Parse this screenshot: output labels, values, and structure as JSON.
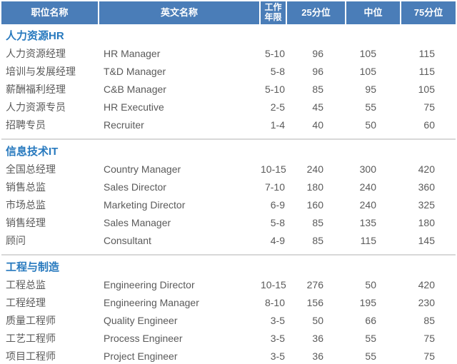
{
  "header": {
    "col_position": "职位名称",
    "col_english": "英文名称",
    "col_years_line1": "工作",
    "col_years_line2": "年限",
    "col_p25": "25分位",
    "col_median": "中位",
    "col_p75": "75分位"
  },
  "sections": [
    {
      "title": "人力资源HR",
      "rows": [
        {
          "cn": "人力资源经理",
          "en": "HR Manager",
          "years": "5-10",
          "p25": "96",
          "median": "105",
          "p75": "115"
        },
        {
          "cn": "培训与发展经理",
          "en": "T&D Manager",
          "years": "5-8",
          "p25": "96",
          "median": "105",
          "p75": "115"
        },
        {
          "cn": "薪酬福利经理",
          "en": "C&B Manager",
          "years": "5-10",
          "p25": "85",
          "median": "95",
          "p75": "105"
        },
        {
          "cn": "人力资源专员",
          "en": "HR Executive",
          "years": "2-5",
          "p25": "45",
          "median": "55",
          "p75": "75"
        },
        {
          "cn": "招聘专员",
          "en": "Recruiter",
          "years": "1-4",
          "p25": "40",
          "median": "50",
          "p75": "60"
        }
      ]
    },
    {
      "title": "信息技术IT",
      "rows": [
        {
          "cn": "全国总经理",
          "en": "Country Manager",
          "years": "10-15",
          "p25": "240",
          "median": "300",
          "p75": "420"
        },
        {
          "cn": "销售总监",
          "en": "Sales Director",
          "years": "7-10",
          "p25": "180",
          "median": "240",
          "p75": "360"
        },
        {
          "cn": "市场总监",
          "en": "Marketing Director",
          "years": "6-9",
          "p25": "160",
          "median": "240",
          "p75": "325"
        },
        {
          "cn": "销售经理",
          "en": "Sales Manager",
          "years": "5-8",
          "p25": "85",
          "median": "135",
          "p75": "180"
        },
        {
          "cn": "顾问",
          "en": "Consultant",
          "years": "4-9",
          "p25": "85",
          "median": "115",
          "p75": "145"
        }
      ]
    },
    {
      "title": "工程与制造",
      "rows": [
        {
          "cn": "工程总监",
          "en": "Engineering Director",
          "years": "10-15",
          "p25": "276",
          "median": "50",
          "p75": "420"
        },
        {
          "cn": "工程经理",
          "en": "Engineering Manager",
          "years": "8-10",
          "p25": "156",
          "median": "195",
          "p75": "230"
        },
        {
          "cn": "质量工程师",
          "en": "Quality Engineer",
          "years": "3-5",
          "p25": "50",
          "median": "66",
          "p75": "85"
        },
        {
          "cn": "工艺工程师",
          "en": "Process Engineer",
          "years": "3-5",
          "p25": "36",
          "median": "55",
          "p75": "75"
        },
        {
          "cn": "项目工程师",
          "en": "Project Engineer",
          "years": "3-5",
          "p25": "36",
          "median": "55",
          "p75": "75"
        }
      ]
    }
  ],
  "colors": {
    "header_bg": "#4a7db8",
    "section_title": "#2779be",
    "row_text": "#5a5a5a",
    "divider": "#d8d8d8"
  }
}
